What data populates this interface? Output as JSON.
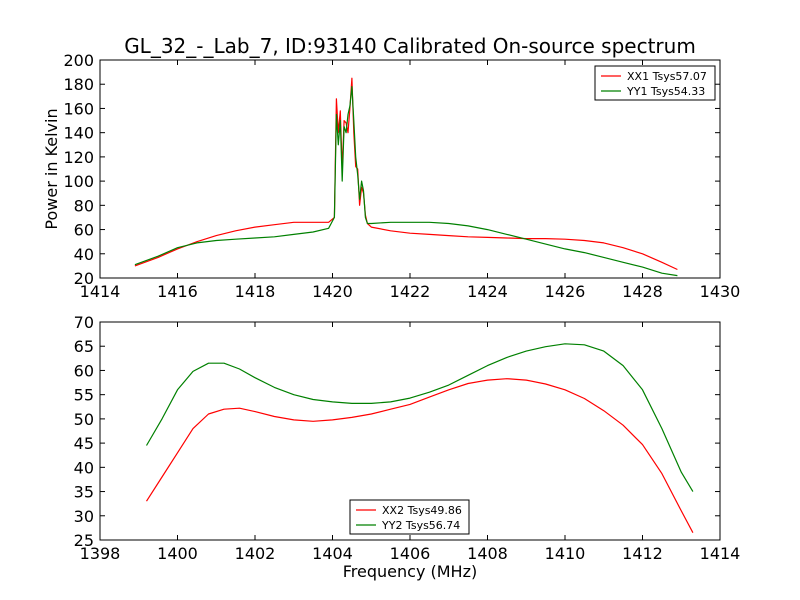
{
  "chart_data": [
    {
      "type": "line",
      "title": "GL_32_-_Lab_7, ID:93140 Calibrated On-source spectrum",
      "xlabel": "",
      "ylabel": "Power in Kelvin",
      "xlim": [
        1414,
        1430
      ],
      "ylim": [
        20,
        200
      ],
      "xticks": [
        1414,
        1416,
        1418,
        1420,
        1422,
        1424,
        1426,
        1428,
        1430
      ],
      "yticks": [
        20,
        40,
        60,
        80,
        100,
        120,
        140,
        160,
        180,
        200
      ],
      "grid": false,
      "legend": "top-right",
      "series": [
        {
          "name": "XX1 Tsys57.07",
          "color": "#ff0000",
          "x": [
            1414.9,
            1415.5,
            1416.0,
            1416.5,
            1417.0,
            1417.5,
            1418.0,
            1418.5,
            1419.0,
            1419.5,
            1419.9,
            1420.05,
            1420.1,
            1420.15,
            1420.2,
            1420.25,
            1420.3,
            1420.35,
            1420.4,
            1420.45,
            1420.5,
            1420.55,
            1420.6,
            1420.65,
            1420.7,
            1420.75,
            1420.8,
            1420.85,
            1420.9,
            1421.0,
            1421.5,
            1422.0,
            1422.5,
            1423.0,
            1423.5,
            1424.0,
            1424.5,
            1425.0,
            1425.5,
            1426.0,
            1426.5,
            1427.0,
            1427.5,
            1428.0,
            1428.5,
            1428.9
          ],
          "values": [
            30,
            37,
            44,
            50,
            55,
            59,
            62,
            64,
            66,
            66,
            66,
            70,
            168,
            140,
            158,
            110,
            150,
            148,
            140,
            160,
            185,
            140,
            112,
            110,
            80,
            95,
            90,
            72,
            65,
            62,
            59,
            57,
            56,
            55,
            54,
            53.5,
            53,
            52.5,
            52.5,
            52,
            51,
            49,
            45,
            40,
            33,
            27
          ]
        },
        {
          "name": "YY1 Tsys54.33",
          "color": "#008000",
          "x": [
            1414.9,
            1415.5,
            1416.0,
            1416.5,
            1417.0,
            1417.5,
            1418.0,
            1418.5,
            1419.0,
            1419.5,
            1419.9,
            1420.05,
            1420.1,
            1420.15,
            1420.2,
            1420.25,
            1420.3,
            1420.35,
            1420.4,
            1420.45,
            1420.5,
            1420.55,
            1420.6,
            1420.65,
            1420.7,
            1420.75,
            1420.8,
            1420.85,
            1420.9,
            1421.0,
            1421.5,
            1422.0,
            1422.5,
            1423.0,
            1423.5,
            1424.0,
            1424.5,
            1425.0,
            1425.5,
            1426.0,
            1426.5,
            1427.0,
            1427.5,
            1428.0,
            1428.5,
            1428.9
          ],
          "values": [
            31,
            38,
            45,
            49,
            51,
            52,
            53,
            54,
            56,
            58,
            61,
            70,
            155,
            130,
            150,
            100,
            145,
            140,
            155,
            162,
            178,
            150,
            120,
            105,
            85,
            100,
            92,
            70,
            65,
            65,
            66,
            66,
            66,
            65,
            63,
            60,
            56,
            52,
            48,
            44,
            41,
            37,
            33,
            29,
            24,
            22
          ]
        }
      ]
    },
    {
      "type": "line",
      "title": "",
      "xlabel": "Frequency (MHz)",
      "ylabel": "",
      "xlim": [
        1398,
        1414
      ],
      "ylim": [
        25,
        70
      ],
      "xticks": [
        1398,
        1400,
        1402,
        1404,
        1406,
        1408,
        1410,
        1412,
        1414
      ],
      "yticks": [
        25,
        30,
        35,
        40,
        45,
        50,
        55,
        60,
        65,
        70
      ],
      "grid": false,
      "legend": "bottom-center",
      "series": [
        {
          "name": "XX2 Tsys49.86",
          "color": "#ff0000",
          "x": [
            1399.2,
            1399.6,
            1400.0,
            1400.4,
            1400.8,
            1401.2,
            1401.6,
            1402.0,
            1402.5,
            1403.0,
            1403.5,
            1404.0,
            1404.5,
            1405.0,
            1405.5,
            1406.0,
            1406.5,
            1407.0,
            1407.5,
            1408.0,
            1408.5,
            1409.0,
            1409.5,
            1410.0,
            1410.5,
            1411.0,
            1411.5,
            1412.0,
            1412.5,
            1413.0,
            1413.3
          ],
          "values": [
            33,
            38,
            43,
            48,
            51,
            52,
            52.2,
            51.5,
            50.5,
            49.8,
            49.5,
            49.8,
            50.3,
            51,
            52,
            53,
            54.5,
            56,
            57.3,
            58,
            58.3,
            58,
            57.2,
            56,
            54.2,
            51.7,
            48.7,
            44.7,
            38.7,
            31,
            26.5
          ]
        },
        {
          "name": "YY2 Tsys56.74",
          "color": "#008000",
          "x": [
            1399.2,
            1399.6,
            1400.0,
            1400.4,
            1400.8,
            1401.2,
            1401.6,
            1402.0,
            1402.5,
            1403.0,
            1403.5,
            1404.0,
            1404.5,
            1405.0,
            1405.5,
            1406.0,
            1406.5,
            1407.0,
            1407.5,
            1408.0,
            1408.5,
            1409.0,
            1409.5,
            1410.0,
            1410.5,
            1411.0,
            1411.5,
            1412.0,
            1412.5,
            1413.0,
            1413.3
          ],
          "values": [
            44.5,
            50,
            56,
            59.8,
            61.5,
            61.5,
            60.3,
            58.5,
            56.5,
            55,
            54,
            53.5,
            53.2,
            53.2,
            53.5,
            54.3,
            55.5,
            57,
            59,
            61,
            62.7,
            64,
            64.9,
            65.5,
            65.3,
            64,
            61,
            56,
            48,
            39,
            35
          ]
        }
      ]
    }
  ]
}
